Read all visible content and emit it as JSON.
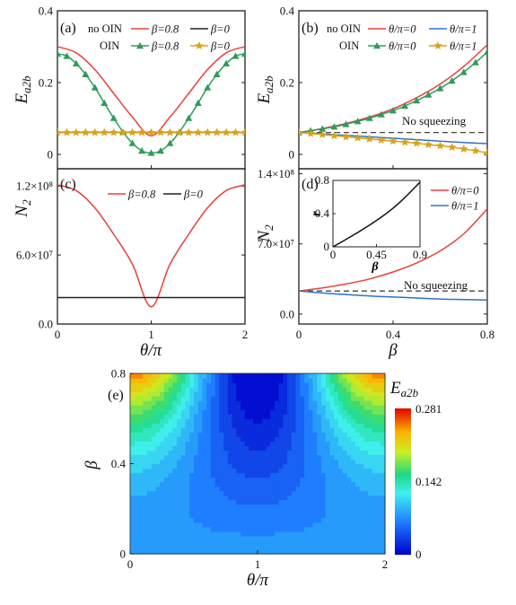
{
  "chart_data": [
    {
      "panel": "(a)",
      "type": "line",
      "xlim": [
        0,
        2
      ],
      "ylim": [
        -0.04,
        0.4
      ],
      "x_ticks": [],
      "y_ticks": [
        "0",
        "0.2",
        "0.4"
      ],
      "ylabel": "E",
      "ylabel_sub": "a2b",
      "legend_groups": [
        "no OIN",
        "OIN"
      ],
      "series": [
        {
          "name": "β=0.8",
          "group": "no OIN",
          "color": "#e8413c",
          "marker": "none",
          "x": [
            0,
            0.2,
            0.4,
            0.6,
            0.8,
            1.0,
            1.2,
            1.4,
            1.6,
            1.8,
            2.0
          ],
          "y": [
            0.3,
            0.283,
            0.236,
            0.17,
            0.104,
            0.052,
            0.104,
            0.17,
            0.236,
            0.283,
            0.3
          ]
        },
        {
          "name": "β=0",
          "group": "no OIN",
          "color": "#222222",
          "marker": "none",
          "x": [
            0,
            2
          ],
          "y": [
            0.061,
            0.061
          ]
        },
        {
          "name": "β=0.8",
          "group": "OIN",
          "color": "#2e9b5a",
          "marker": "triangle",
          "x": [
            0,
            0.1,
            0.2,
            0.3,
            0.4,
            0.5,
            0.6,
            0.7,
            0.8,
            0.9,
            1.0,
            1.1,
            1.2,
            1.3,
            1.4,
            1.5,
            1.6,
            1.7,
            1.8,
            1.9,
            2.0
          ],
          "y": [
            0.28,
            0.274,
            0.253,
            0.223,
            0.186,
            0.143,
            0.101,
            0.062,
            0.031,
            0.01,
            0.004,
            0.01,
            0.031,
            0.062,
            0.101,
            0.143,
            0.186,
            0.223,
            0.253,
            0.274,
            0.28
          ]
        },
        {
          "name": "β=0",
          "group": "OIN",
          "color": "#d9a21b",
          "marker": "star",
          "x": [
            0,
            0.1,
            0.2,
            0.3,
            0.4,
            0.5,
            0.6,
            0.7,
            0.8,
            0.9,
            1.0,
            1.1,
            1.2,
            1.3,
            1.4,
            1.5,
            1.6,
            1.7,
            1.8,
            1.9,
            2.0
          ],
          "y": [
            0.061,
            0.061,
            0.061,
            0.061,
            0.061,
            0.061,
            0.061,
            0.061,
            0.061,
            0.061,
            0.061,
            0.061,
            0.061,
            0.061,
            0.061,
            0.061,
            0.061,
            0.061,
            0.061,
            0.061,
            0.061
          ]
        }
      ]
    },
    {
      "panel": "(b)",
      "type": "line",
      "xlim": [
        0,
        0.8
      ],
      "ylim": [
        -0.04,
        0.4
      ],
      "x_ticks": [],
      "y_ticks": [
        "0",
        "0.2",
        "0.4"
      ],
      "ylabel": "E",
      "ylabel_sub": "a2b",
      "legend_groups": [
        "no OIN",
        "OIN"
      ],
      "annotation": "No squeezing",
      "reference_line": {
        "y": 0.061,
        "style": "dashed",
        "color": "#444444"
      },
      "series": [
        {
          "name": "θ/π=0",
          "group": "no OIN",
          "color": "#e8413c",
          "marker": "none",
          "x": [
            0,
            0.1,
            0.2,
            0.3,
            0.4,
            0.5,
            0.6,
            0.7,
            0.8
          ],
          "y": [
            0.061,
            0.072,
            0.086,
            0.104,
            0.127,
            0.158,
            0.196,
            0.245,
            0.305
          ]
        },
        {
          "name": "θ/π=1",
          "group": "no OIN",
          "color": "#2f73c9",
          "marker": "none",
          "x": [
            0,
            0.1,
            0.2,
            0.3,
            0.4,
            0.5,
            0.6,
            0.7,
            0.8
          ],
          "y": [
            0.061,
            0.057,
            0.053,
            0.049,
            0.045,
            0.041,
            0.037,
            0.033,
            0.03
          ]
        },
        {
          "name": "θ/π=0",
          "group": "OIN",
          "color": "#2e9b5a",
          "marker": "triangle",
          "x": [
            0,
            0.05,
            0.1,
            0.15,
            0.2,
            0.25,
            0.3,
            0.35,
            0.4,
            0.45,
            0.5,
            0.55,
            0.6,
            0.65,
            0.7,
            0.75,
            0.8
          ],
          "y": [
            0.061,
            0.066,
            0.071,
            0.077,
            0.084,
            0.092,
            0.101,
            0.111,
            0.122,
            0.135,
            0.15,
            0.166,
            0.184,
            0.205,
            0.229,
            0.256,
            0.285
          ]
        },
        {
          "name": "θ/π=1",
          "group": "OIN",
          "color": "#d9a21b",
          "marker": "star",
          "x": [
            0,
            0.05,
            0.1,
            0.15,
            0.2,
            0.25,
            0.3,
            0.35,
            0.4,
            0.45,
            0.5,
            0.55,
            0.6,
            0.65,
            0.7,
            0.75,
            0.8
          ],
          "y": [
            0.061,
            0.058,
            0.055,
            0.052,
            0.049,
            0.046,
            0.043,
            0.04,
            0.037,
            0.034,
            0.031,
            0.027,
            0.024,
            0.02,
            0.015,
            0.01,
            0.004
          ]
        }
      ]
    },
    {
      "panel": "(c)",
      "type": "line",
      "xlim": [
        0,
        2
      ],
      "ylim": [
        0,
        135000000.0
      ],
      "x_ticks": [
        "0",
        "1",
        "2"
      ],
      "y_ticks": [
        "0.0",
        "6.0×10⁷",
        "1.2×10⁸"
      ],
      "y_tick_values": [
        0,
        60000000.0,
        120000000.0
      ],
      "xlabel": "θ/π",
      "ylabel": "N",
      "ylabel_sub": "2",
      "series": [
        {
          "name": "β=0.8",
          "color": "#e8413c",
          "x": [
            0,
            0.2,
            0.4,
            0.6,
            0.8,
            1.0,
            1.2,
            1.4,
            1.6,
            1.8,
            2.0
          ],
          "y": [
            121000000.0,
            116000000.0,
            101000000.0,
            78000000.0,
            52000000.0,
            15000000.0,
            52000000.0,
            78000000.0,
            101000000.0,
            116000000.0,
            121000000.0
          ]
        },
        {
          "name": "β=0",
          "color": "#222222",
          "x": [
            0,
            2
          ],
          "y": [
            23000000.0,
            23000000.0
          ]
        }
      ]
    },
    {
      "panel": "(d)",
      "type": "line",
      "xlim": [
        0,
        0.8
      ],
      "ylim": [
        -10000000.0,
        145000000.0
      ],
      "x_ticks": [
        "0",
        "0.4",
        "0.8"
      ],
      "y_ticks": [
        "0.0",
        "7.0×10⁷",
        "1.4×10⁸"
      ],
      "y_tick_values": [
        0,
        70000000.0,
        140000000.0
      ],
      "xlabel": "β",
      "ylabel": "N",
      "ylabel_sub": "2",
      "annotation": "No squeezing",
      "reference_line": {
        "y": 23000000.0,
        "style": "dashed",
        "color": "#444444"
      },
      "series": [
        {
          "name": "θ/π=0",
          "color": "#e8413c",
          "x": [
            0,
            0.1,
            0.2,
            0.3,
            0.4,
            0.5,
            0.6,
            0.7,
            0.8
          ],
          "y": [
            23000000.0,
            26000000.0,
            30000000.0,
            35000000.0,
            42000000.0,
            51000000.0,
            63000000.0,
            80000000.0,
            105000000.0
          ]
        },
        {
          "name": "θ/π=1",
          "color": "#2f73c9",
          "x": [
            0,
            0.1,
            0.2,
            0.3,
            0.4,
            0.5,
            0.6,
            0.7,
            0.8
          ],
          "y": [
            23000000.0,
            21000000.0,
            19500000.0,
            18000000.0,
            17000000.0,
            16000000.0,
            15000000.0,
            14500000.0,
            14000000.0
          ]
        }
      ],
      "inset": {
        "type": "line",
        "xlabel": "β",
        "ylabel": "r",
        "xlim": [
          0,
          0.9
        ],
        "ylim": [
          0,
          0.8
        ],
        "x_ticks": [
          "0",
          "0.45",
          "0.9"
        ],
        "y_ticks": [
          "0",
          "0.4",
          "0.8"
        ],
        "x": [
          0,
          0.1,
          0.2,
          0.3,
          0.4,
          0.5,
          0.6,
          0.7,
          0.8,
          0.9
        ],
        "y": [
          0,
          0.066,
          0.134,
          0.204,
          0.278,
          0.358,
          0.445,
          0.545,
          0.659,
          0.78
        ]
      }
    },
    {
      "panel": "(e)",
      "type": "heatmap",
      "xlim": [
        0,
        2
      ],
      "ylim": [
        0,
        0.8
      ],
      "x_ticks": [
        "0",
        "1",
        "2"
      ],
      "y_ticks": [
        "0",
        "0.4",
        "0.8"
      ],
      "xlabel": "θ/π",
      "ylabel": "β",
      "colorbar_label": "E",
      "colorbar_label_sub": "a2b",
      "colorbar_ticks": [
        "0.281",
        "0.142",
        "0"
      ],
      "colorbar_range": [
        0,
        0.281
      ]
    }
  ]
}
